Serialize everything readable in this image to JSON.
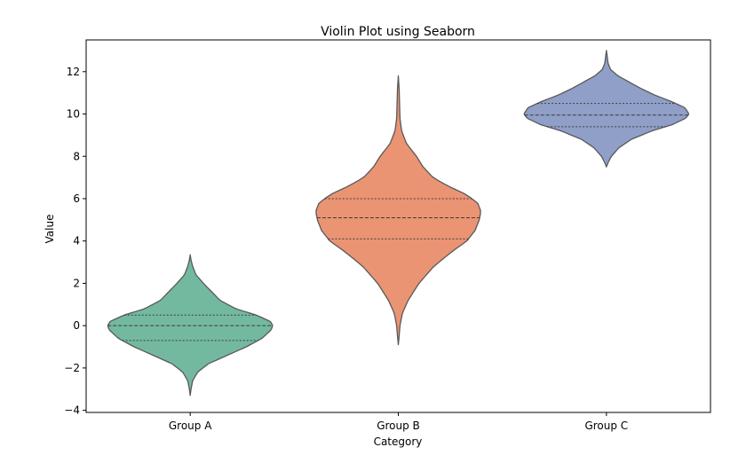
{
  "chart_data": {
    "type": "violin",
    "title": "Violin Plot using Seaborn",
    "xlabel": "Category",
    "ylabel": "Value",
    "ylim": [
      -4.1,
      13.5
    ],
    "yticks": [
      -4,
      -2,
      0,
      2,
      4,
      6,
      8,
      10,
      12
    ],
    "yticklabels": [
      "−4",
      "−2",
      "0",
      "2",
      "4",
      "6",
      "8",
      "10",
      "12"
    ],
    "categories": [
      "Group A",
      "Group B",
      "Group C"
    ],
    "inner": "quartile",
    "legend": false,
    "grid": false,
    "series": [
      {
        "category": "Group A",
        "color": "#73b9a0",
        "min": -3.3,
        "q1": -0.7,
        "median": 0.0,
        "q3": 0.5,
        "max": 3.35,
        "density": [
          [
            -3.3,
            0.0
          ],
          [
            -3.0,
            0.01
          ],
          [
            -2.6,
            0.03
          ],
          [
            -2.2,
            0.09
          ],
          [
            -1.8,
            0.22
          ],
          [
            -1.4,
            0.45
          ],
          [
            -1.0,
            0.68
          ],
          [
            -0.6,
            0.87
          ],
          [
            -0.2,
            0.98
          ],
          [
            0.0,
            1.0
          ],
          [
            0.2,
            0.97
          ],
          [
            0.5,
            0.8
          ],
          [
            0.8,
            0.55
          ],
          [
            1.2,
            0.36
          ],
          [
            1.6,
            0.26
          ],
          [
            2.0,
            0.16
          ],
          [
            2.4,
            0.07
          ],
          [
            2.8,
            0.03
          ],
          [
            3.1,
            0.01
          ],
          [
            3.35,
            0.0
          ]
        ]
      },
      {
        "category": "Group B",
        "color": "#ea9473",
        "min": -0.9,
        "q1": 4.1,
        "median": 5.1,
        "q3": 6.0,
        "max": 11.8,
        "density": [
          [
            -0.9,
            0.0
          ],
          [
            -0.5,
            0.01
          ],
          [
            0.0,
            0.02
          ],
          [
            0.6,
            0.05
          ],
          [
            1.2,
            0.12
          ],
          [
            2.0,
            0.25
          ],
          [
            2.8,
            0.43
          ],
          [
            3.5,
            0.65
          ],
          [
            4.0,
            0.83
          ],
          [
            4.5,
            0.93
          ],
          [
            5.0,
            0.98
          ],
          [
            5.4,
            1.0
          ],
          [
            5.8,
            0.96
          ],
          [
            6.2,
            0.82
          ],
          [
            6.6,
            0.6
          ],
          [
            7.0,
            0.42
          ],
          [
            7.5,
            0.3
          ],
          [
            8.0,
            0.22
          ],
          [
            8.6,
            0.1
          ],
          [
            9.2,
            0.04
          ],
          [
            9.8,
            0.02
          ],
          [
            10.5,
            0.015
          ],
          [
            11.2,
            0.01
          ],
          [
            11.8,
            0.0
          ]
        ]
      },
      {
        "category": "Group C",
        "color": "#8f9fc8",
        "min": 7.5,
        "q1": 9.4,
        "median": 9.95,
        "q3": 10.5,
        "max": 13.0,
        "density": [
          [
            7.5,
            0.0
          ],
          [
            7.7,
            0.02
          ],
          [
            8.0,
            0.06
          ],
          [
            8.4,
            0.15
          ],
          [
            8.8,
            0.3
          ],
          [
            9.2,
            0.55
          ],
          [
            9.5,
            0.8
          ],
          [
            9.8,
            0.96
          ],
          [
            10.0,
            1.0
          ],
          [
            10.3,
            0.95
          ],
          [
            10.6,
            0.78
          ],
          [
            10.9,
            0.58
          ],
          [
            11.2,
            0.42
          ],
          [
            11.5,
            0.28
          ],
          [
            11.8,
            0.14
          ],
          [
            12.1,
            0.05
          ],
          [
            12.4,
            0.02
          ],
          [
            12.7,
            0.01
          ],
          [
            13.0,
            0.0
          ]
        ]
      }
    ]
  }
}
